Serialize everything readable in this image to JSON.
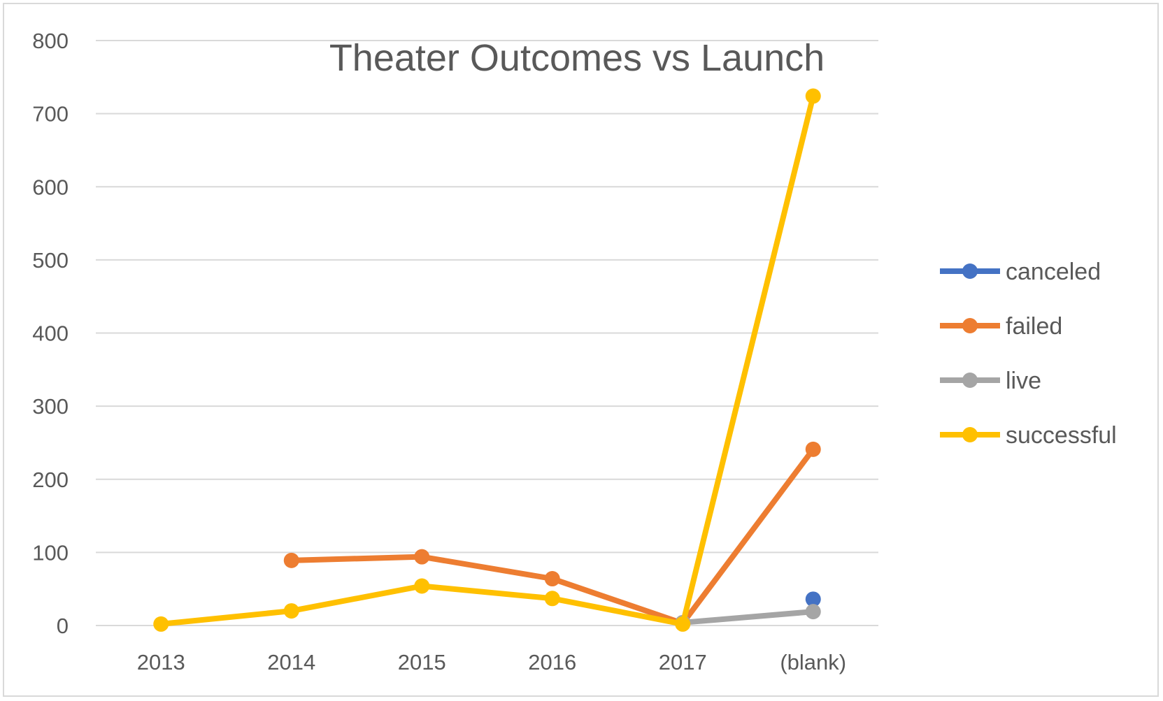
{
  "chart_data": {
    "type": "line",
    "title": "Theater Outcomes vs Launch",
    "xlabel": "",
    "ylabel": "",
    "categories": [
      "2013",
      "2014",
      "2015",
      "2016",
      "2017",
      "(blank)"
    ],
    "ylim": [
      0,
      800
    ],
    "yticks": [
      0,
      100,
      200,
      300,
      400,
      500,
      600,
      700,
      800
    ],
    "grid": true,
    "legend_position": "right",
    "series": [
      {
        "name": "canceled",
        "color": "#4472C4",
        "values": [
          null,
          null,
          null,
          null,
          null,
          36
        ]
      },
      {
        "name": "failed",
        "color": "#ED7D31",
        "values": [
          null,
          89,
          94,
          64,
          3,
          241
        ]
      },
      {
        "name": "live",
        "color": "#A5A5A5",
        "values": [
          null,
          null,
          null,
          null,
          4,
          19
        ]
      },
      {
        "name": "successful",
        "color": "#FFC000",
        "values": [
          2,
          20,
          54,
          37,
          2,
          724
        ]
      }
    ]
  }
}
